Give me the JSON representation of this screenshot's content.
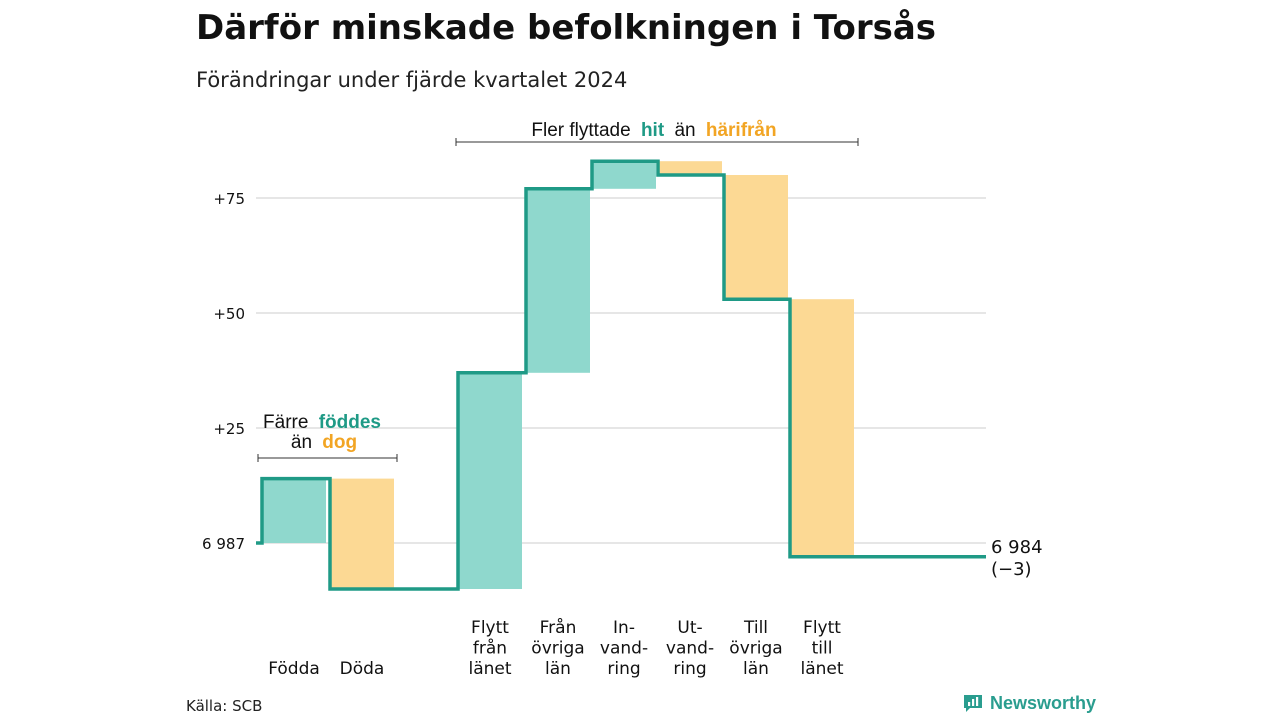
{
  "title": "Därför minskade befolkningen i Torsås",
  "subtitle": "Förändringar under fjärde kvartalet 2024",
  "source": "Källa: SCB",
  "brand": "Newsworthy",
  "colors": {
    "increase": "#8fd8cd",
    "decrease": "#fcd994",
    "line": "#1f9a86",
    "teal_text": "#1f9a86",
    "orange_text": "#f2a524",
    "grid": "#dddddd"
  },
  "annotations": {
    "natural": {
      "line1_a": "Färre",
      "line1_b": "föddes",
      "line2_a": "än",
      "line2_b": "dog"
    },
    "migration": {
      "a": "Fler flyttade",
      "b": "hit",
      "c": "än",
      "d": "härifrån"
    }
  },
  "chart_data": {
    "type": "waterfall",
    "title": "Därför minskade befolkningen i Torsås",
    "subtitle": "Förändringar under fjärde kvartalet 2024",
    "y_ticks": [
      {
        "value": 0,
        "label": "6 987"
      },
      {
        "value": 25,
        "label": "+25"
      },
      {
        "value": 50,
        "label": "+50"
      },
      {
        "value": 75,
        "label": "+75"
      }
    ],
    "ylim": [
      -11,
      88
    ],
    "grid": true,
    "start": {
      "value": 0,
      "label": "6 987"
    },
    "end": {
      "value": -3,
      "label_line1": "6 984",
      "label_line2": "(−3)"
    },
    "steps": [
      {
        "label": [
          "Födda"
        ],
        "change": 14,
        "kind": "increase"
      },
      {
        "label": [
          "Döda"
        ],
        "change": -24,
        "kind": "decrease"
      },
      {
        "label": [
          "Flytt",
          "från",
          "länet"
        ],
        "change": 47,
        "kind": "increase"
      },
      {
        "label": [
          "Från",
          "övriga",
          "län"
        ],
        "change": 40,
        "kind": "increase"
      },
      {
        "label": [
          "In-",
          "vand-",
          "ring"
        ],
        "change": 6,
        "kind": "increase"
      },
      {
        "label": [
          "Ut-",
          "vand-",
          "ring"
        ],
        "change": -3,
        "kind": "decrease"
      },
      {
        "label": [
          "Till",
          "övriga",
          "län"
        ],
        "change": -27,
        "kind": "decrease"
      },
      {
        "label": [
          "Flytt",
          "till",
          "länet"
        ],
        "change": -56,
        "kind": "decrease"
      }
    ]
  }
}
